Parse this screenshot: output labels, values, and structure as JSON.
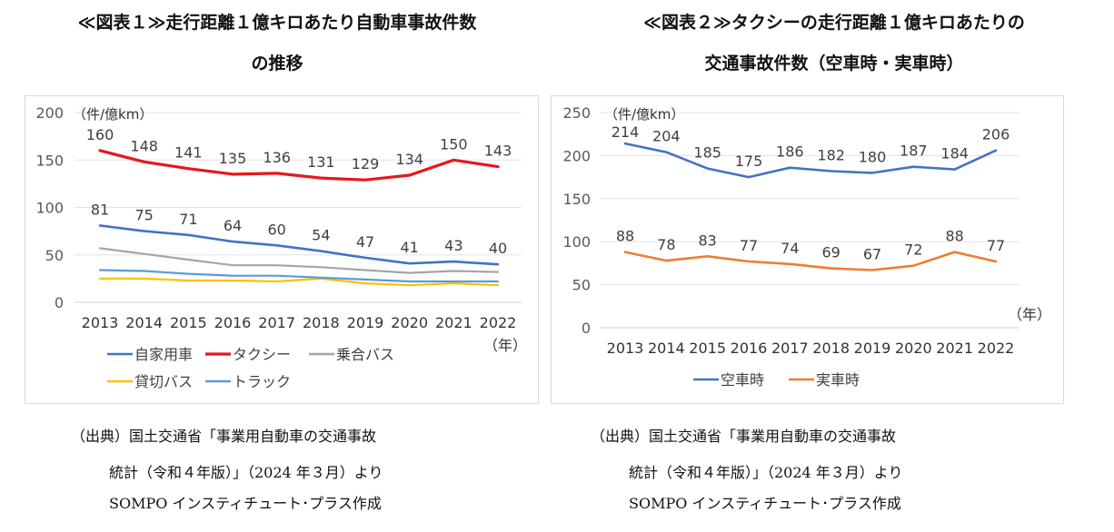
{
  "charts": [
    {
      "title_line1": "≪図表１≫走行距離１億キロあたり自動車事故件数",
      "title_line2": "の推移",
      "source_lines": [
        "（出典）国土交通省「事業用自動車の交通事故",
        "統計（令和４年版）」（2024 年３月）より",
        "SOMPO インスティチュート･プラス作成"
      ]
    },
    {
      "title_line1": "≪図表２≫タクシーの走行距離１億キロあたりの",
      "title_line2": "交通事故件数（空車時・実車時）",
      "source_lines": [
        "（出典）国土交通省「事業用自動車の交通事故",
        "統計（令和４年版）」（2024 年３月）より",
        "SOMPO インスティチュート･プラス作成"
      ]
    }
  ],
  "chart_data": [
    {
      "type": "line",
      "title": "≪図表１≫走行距離１億キロあたり自動車事故件数の推移",
      "ylabel": "（件/億km）",
      "xlabel": "（年）",
      "categories": [
        "2013",
        "2014",
        "2015",
        "2016",
        "2017",
        "2018",
        "2019",
        "2020",
        "2021",
        "2022"
      ],
      "ylim": [
        0,
        200
      ],
      "yticks": [
        0,
        50,
        100,
        150,
        200
      ],
      "grid": true,
      "legend_position": "bottom",
      "series": [
        {
          "name": "自家用車",
          "color": "#4472c4",
          "labeled": true,
          "values": [
            81,
            75,
            71,
            64,
            60,
            54,
            47,
            41,
            43,
            40
          ]
        },
        {
          "name": "タクシー",
          "color": "#e8161c",
          "labeled": true,
          "values": [
            160,
            148,
            141,
            135,
            136,
            131,
            129,
            134,
            150,
            143
          ]
        },
        {
          "name": "乗合バス",
          "color": "#a5a5a5",
          "labeled": false,
          "values": [
            57,
            51,
            45,
            39,
            39,
            37,
            34,
            31,
            33,
            32
          ]
        },
        {
          "name": "貸切バス",
          "color": "#ffc000",
          "labeled": false,
          "values": [
            25,
            25,
            23,
            23,
            22,
            25,
            20,
            18,
            20,
            18
          ]
        },
        {
          "name": "トラック",
          "color": "#5b9bd5",
          "labeled": false,
          "values": [
            34,
            33,
            30,
            28,
            28,
            26,
            24,
            22,
            22,
            22
          ]
        }
      ]
    },
    {
      "type": "line",
      "title": "≪図表２≫タクシーの走行距離１億キロあたりの交通事故件数（空車時・実車時）",
      "ylabel": "（件/億km）",
      "xlabel": "（年）",
      "categories": [
        "2013",
        "2014",
        "2015",
        "2016",
        "2017",
        "2018",
        "2019",
        "2020",
        "2021",
        "2022"
      ],
      "ylim": [
        0,
        250
      ],
      "yticks": [
        0,
        50,
        100,
        150,
        200,
        250
      ],
      "grid": true,
      "legend_position": "bottom",
      "series": [
        {
          "name": "空車時",
          "color": "#4472c4",
          "labeled": true,
          "values": [
            214,
            204,
            185,
            175,
            186,
            182,
            180,
            187,
            184,
            206
          ]
        },
        {
          "name": "実車時",
          "color": "#ed7d31",
          "labeled": true,
          "values": [
            88,
            78,
            83,
            77,
            74,
            69,
            67,
            72,
            88,
            77
          ]
        }
      ]
    }
  ]
}
